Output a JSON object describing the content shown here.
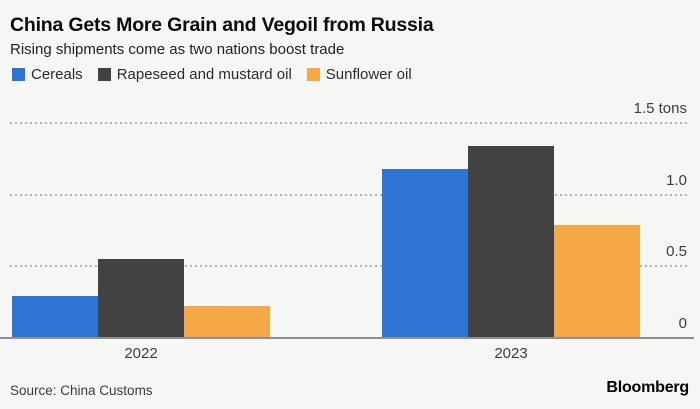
{
  "header": {
    "title": "China Gets More Grain and Vegoil from Russia",
    "subtitle": "Rising shipments come as two nations boost trade"
  },
  "legend": [
    {
      "label": "Cereals",
      "color": "#2e73d6",
      "icon": "legend-swatch-square"
    },
    {
      "label": "Rapeseed and mustard oil",
      "color": "#424242",
      "icon": "legend-swatch-square"
    },
    {
      "label": "Sunflower oil",
      "color": "#f5a843",
      "icon": "legend-swatch-square"
    }
  ],
  "chart_data": {
    "type": "bar",
    "categories": [
      "2022",
      "2023"
    ],
    "series": [
      {
        "name": "Cereals",
        "color": "#2e73d6",
        "values": [
          0.29,
          1.18
        ]
      },
      {
        "name": "Rapeseed and mustard oil",
        "color": "#424242",
        "values": [
          0.55,
          1.34
        ]
      },
      {
        "name": "Sunflower oil",
        "color": "#f5a843",
        "values": [
          0.22,
          0.79
        ]
      }
    ],
    "title": "China Gets More Grain and Vegoil from Russia",
    "subtitle": "Rising shipments come as two nations boost trade",
    "xlabel": "",
    "ylabel": "tons",
    "ylim": [
      0,
      1.5
    ],
    "yticks": [
      {
        "value": 0,
        "label": "0"
      },
      {
        "value": 0.5,
        "label": "0.5"
      },
      {
        "value": 1.0,
        "label": "1.0"
      },
      {
        "value": 1.5,
        "label": "1.5 tons"
      }
    ],
    "grid": "horizontal-dotted",
    "legend_position": "top-left"
  },
  "footer": {
    "source": "Source: China Customs",
    "brand": "Bloomberg"
  }
}
